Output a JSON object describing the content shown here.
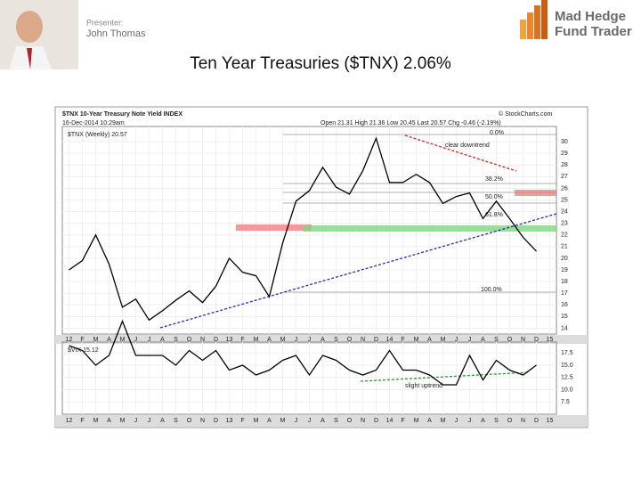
{
  "header": {
    "presenter_label": "Presenter:",
    "presenter_name": "John Thomas",
    "logo_line1": "Mad Hedge",
    "logo_line2": "Fund Trader"
  },
  "title": "Ten Year Treasuries ($TNX) 2.06%",
  "chart_data": [
    {
      "type": "line",
      "title": "$TNX 10-Year Treasury Note Yield INDEX",
      "subtitle": "16-Dec-2014 10:29am",
      "quote": "Open 21.31 High 21.36 Low 20.45 Last 20.57 Chg -0.46 (-2.19%)",
      "source": "© StockCharts.com",
      "annotations": [
        "clear downtrend",
        "0.0%",
        "38.2%",
        "50.0%",
        "61.8%",
        "100.0%"
      ],
      "x": [
        0,
        1,
        2,
        3,
        4,
        5,
        6,
        7,
        8,
        9,
        10,
        11,
        12,
        13,
        14,
        15,
        16,
        17,
        18,
        19,
        20,
        21,
        22,
        23,
        24,
        25,
        26,
        27,
        28,
        29,
        30,
        31,
        32,
        33,
        34,
        35
      ],
      "series": [
        {
          "name": "$TNX (Weekly) 20.57",
          "color": "#000000",
          "values": [
            19.0,
            19.8,
            22.0,
            19.5,
            15.8,
            16.5,
            14.7,
            15.5,
            16.4,
            17.2,
            16.2,
            17.6,
            20.0,
            18.8,
            18.5,
            16.7,
            21.3,
            24.9,
            25.8,
            27.8,
            26.1,
            25.5,
            27.5,
            30.3,
            26.5,
            26.5,
            27.2,
            26.5,
            24.7,
            25.3,
            25.6,
            23.4,
            24.9,
            23.4,
            21.8,
            20.6
          ]
        }
      ],
      "xlim": [
        -0.5,
        36.5
      ],
      "xticks": [
        {
          "value": 0,
          "label": "12"
        },
        {
          "value": 1,
          "label": "F"
        },
        {
          "value": 2,
          "label": "M"
        },
        {
          "value": 3,
          "label": "A"
        },
        {
          "value": 4,
          "label": "M"
        },
        {
          "value": 5,
          "label": "J"
        },
        {
          "value": 6,
          "label": "J"
        },
        {
          "value": 7,
          "label": "A"
        },
        {
          "value": 8,
          "label": "S"
        },
        {
          "value": 9,
          "label": "O"
        },
        {
          "value": 10,
          "label": "N"
        },
        {
          "value": 11,
          "label": "D"
        },
        {
          "value": 12,
          "label": "13"
        },
        {
          "value": 13,
          "label": "F"
        },
        {
          "value": 14,
          "label": "M"
        },
        {
          "value": 15,
          "label": "A"
        },
        {
          "value": 16,
          "label": "M"
        },
        {
          "value": 17,
          "label": "J"
        },
        {
          "value": 18,
          "label": "J"
        },
        {
          "value": 19,
          "label": "A"
        },
        {
          "value": 20,
          "label": "S"
        },
        {
          "value": 21,
          "label": "O"
        },
        {
          "value": 22,
          "label": "N"
        },
        {
          "value": 23,
          "label": "D"
        },
        {
          "value": 24,
          "label": "14"
        },
        {
          "value": 25,
          "label": "F"
        },
        {
          "value": 26,
          "label": "M"
        },
        {
          "value": 27,
          "label": "A"
        },
        {
          "value": 28,
          "label": "M"
        },
        {
          "value": 29,
          "label": "J"
        },
        {
          "value": 30,
          "label": "J"
        },
        {
          "value": 31,
          "label": "A"
        },
        {
          "value": 32,
          "label": "S"
        },
        {
          "value": 33,
          "label": "O"
        },
        {
          "value": 34,
          "label": "N"
        },
        {
          "value": 35,
          "label": "D"
        },
        {
          "value": 36,
          "label": "15"
        }
      ],
      "ylim": [
        13.5,
        31
      ],
      "yticks": [
        14,
        15,
        16,
        17,
        18,
        19,
        20,
        21,
        22,
        23,
        24,
        25,
        26,
        27,
        28,
        29,
        30
      ],
      "grid": true
    },
    {
      "type": "line",
      "annotations": [
        "slight uptrend"
      ],
      "x": [
        0,
        1,
        2,
        3,
        4,
        5,
        6,
        7,
        8,
        9,
        10,
        11,
        12,
        13,
        14,
        15,
        16,
        17,
        18,
        19,
        20,
        21,
        22,
        23,
        24,
        25,
        26,
        27,
        28,
        29,
        30,
        31,
        32,
        33,
        34,
        35
      ],
      "series": [
        {
          "name": "$VIX 15.12",
          "color": "#000000",
          "values": [
            19,
            18,
            15,
            17,
            24,
            17,
            17,
            17,
            15,
            18,
            16,
            18,
            14,
            15,
            13,
            14,
            16,
            17,
            13,
            17,
            16,
            14,
            13,
            14,
            18,
            14,
            14,
            13,
            11,
            11,
            17,
            12,
            16,
            14,
            13,
            15
          ]
        }
      ],
      "xlim": [
        -0.5,
        36.5
      ],
      "xticks": [
        {
          "value": 0,
          "label": "12"
        },
        {
          "value": 1,
          "label": "F"
        },
        {
          "value": 2,
          "label": "M"
        },
        {
          "value": 3,
          "label": "A"
        },
        {
          "value": 4,
          "label": "M"
        },
        {
          "value": 5,
          "label": "J"
        },
        {
          "value": 6,
          "label": "J"
        },
        {
          "value": 7,
          "label": "A"
        },
        {
          "value": 8,
          "label": "S"
        },
        {
          "value": 9,
          "label": "O"
        },
        {
          "value": 10,
          "label": "N"
        },
        {
          "value": 11,
          "label": "D"
        },
        {
          "value": 12,
          "label": "13"
        },
        {
          "value": 13,
          "label": "F"
        },
        {
          "value": 14,
          "label": "M"
        },
        {
          "value": 15,
          "label": "A"
        },
        {
          "value": 16,
          "label": "M"
        },
        {
          "value": 17,
          "label": "J"
        },
        {
          "value": 18,
          "label": "J"
        },
        {
          "value": 19,
          "label": "A"
        },
        {
          "value": 20,
          "label": "S"
        },
        {
          "value": 21,
          "label": "O"
        },
        {
          "value": 22,
          "label": "N"
        },
        {
          "value": 23,
          "label": "D"
        },
        {
          "value": 24,
          "label": "14"
        },
        {
          "value": 25,
          "label": "F"
        },
        {
          "value": 26,
          "label": "M"
        },
        {
          "value": 27,
          "label": "A"
        },
        {
          "value": 28,
          "label": "M"
        },
        {
          "value": 29,
          "label": "J"
        },
        {
          "value": 30,
          "label": "J"
        },
        {
          "value": 31,
          "label": "A"
        },
        {
          "value": 32,
          "label": "S"
        },
        {
          "value": 33,
          "label": "O"
        },
        {
          "value": 34,
          "label": "N"
        },
        {
          "value": 35,
          "label": "D"
        },
        {
          "value": 36,
          "label": "15"
        }
      ],
      "ylim": [
        5,
        19
      ],
      "yticks": [
        {
          "value": 7.5,
          "label": "7.5"
        },
        {
          "value": 10,
          "label": "10.0"
        },
        {
          "value": 12.5,
          "label": "12.5"
        },
        {
          "value": 15,
          "label": "15.0"
        },
        {
          "value": 17.5,
          "label": "17.5"
        }
      ],
      "grid": true
    }
  ]
}
